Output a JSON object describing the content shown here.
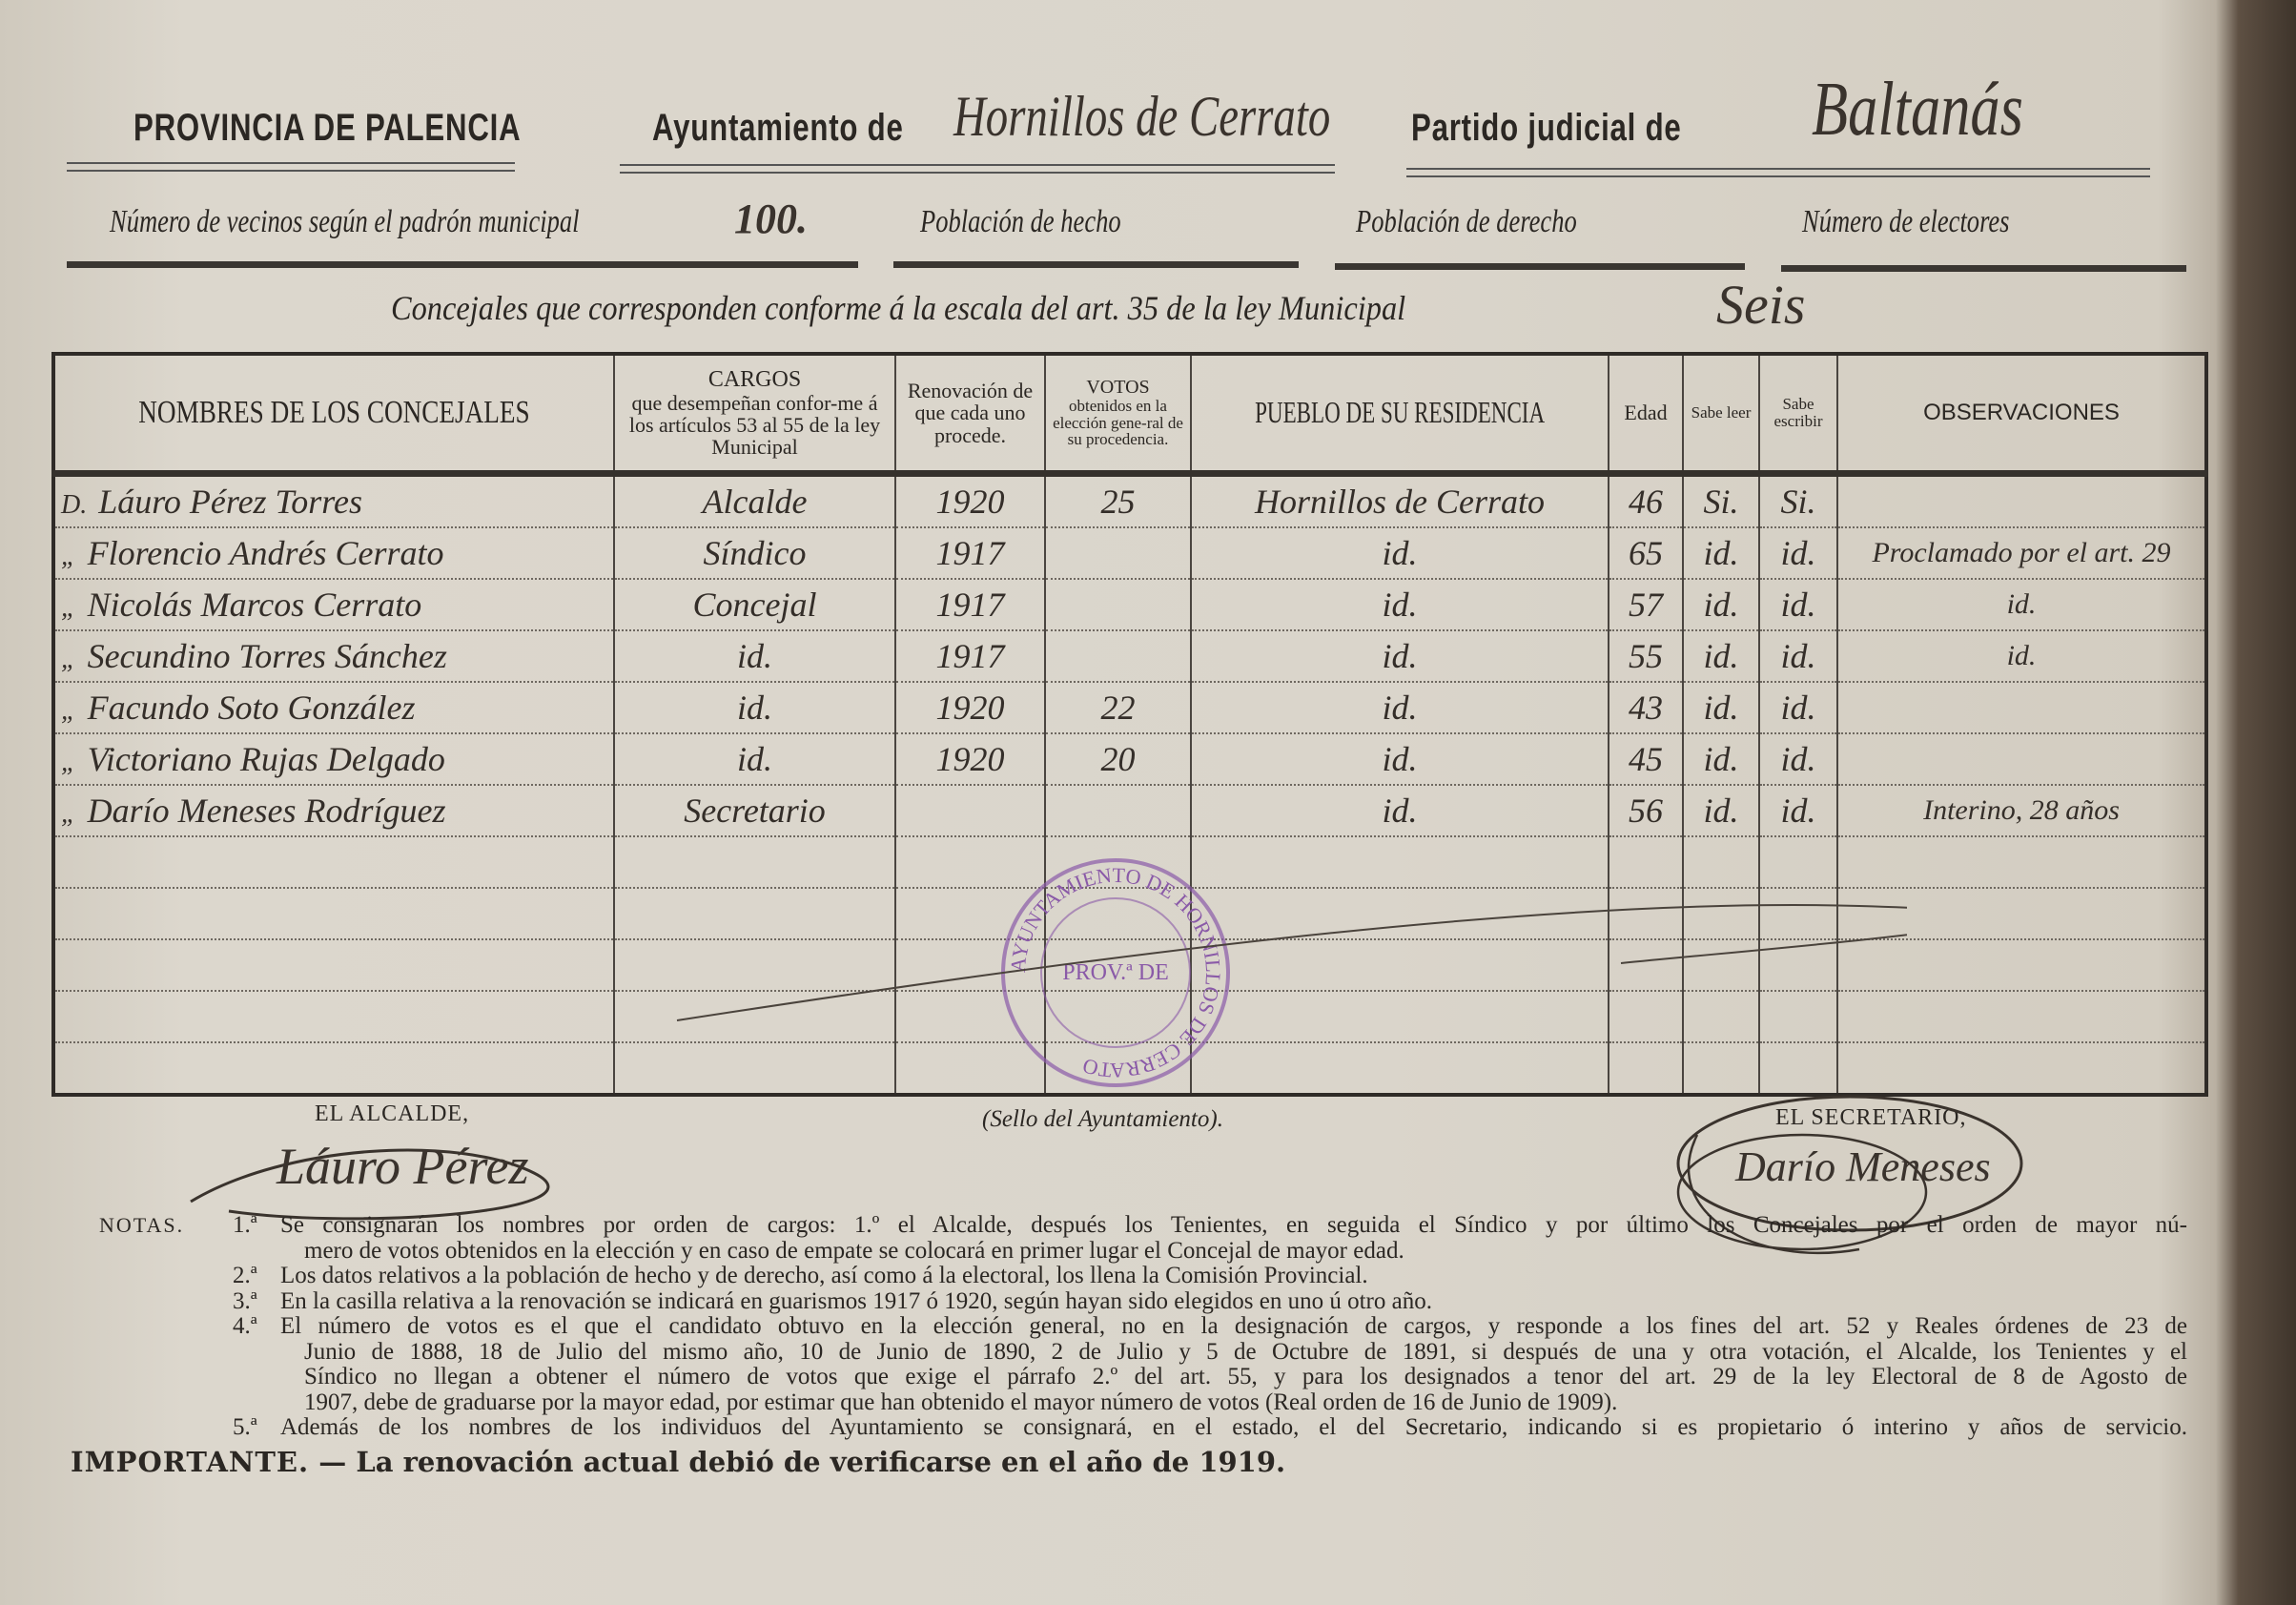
{
  "header": {
    "province": "PROVINCIA DE PALENCIA",
    "ayuntamiento_label": "Ayuntamiento de",
    "ayuntamiento_value": "Hornillos de Cerrato",
    "partido_label": "Partido judicial de",
    "partido_value": "Baltanás"
  },
  "population": {
    "vecinos_label": "Número de vecinos según el padrón municipal",
    "vecinos_value": "100.",
    "hecho_label": "Población de hecho",
    "derecho_label": "Población de derecho",
    "electores_label": "Número de electores"
  },
  "concejales_line": {
    "label": "Concejales que corresponden conforme á la escala del art. 35 de la ley Municipal",
    "value": "Seis"
  },
  "table": {
    "headers": {
      "nombres": "NOMBRES DE LOS CONCEJALES",
      "cargos_title": "CARGOS",
      "cargos_sub": "que desempeñan confor-me á los artículos 53 al 55 de la ley Municipal",
      "renovacion": "Renovación de que cada uno procede.",
      "votos_title": "VOTOS",
      "votos_sub": "obtenidos en la elección gene-ral de su procedencia.",
      "pueblo": "PUEBLO DE SU RESIDENCIA",
      "edad": "Edad",
      "leer": "Sabe leer",
      "escribir": "Sabe escribir",
      "observaciones": "OBSERVACIONES"
    },
    "rows": [
      {
        "prefix": "D.",
        "nombre": "Láuro Pérez Torres",
        "cargo": "Alcalde",
        "renovacion": "1920",
        "votos": "25",
        "pueblo": "Hornillos de Cerrato",
        "edad": "46",
        "leer": "Si.",
        "escribir": "Si.",
        "observaciones": ""
      },
      {
        "prefix": "„",
        "nombre": "Florencio Andrés Cerrato",
        "cargo": "Síndico",
        "renovacion": "1917",
        "votos": "",
        "pueblo": "id.",
        "edad": "65",
        "leer": "id.",
        "escribir": "id.",
        "observaciones": "Proclamado por el art. 29"
      },
      {
        "prefix": "„",
        "nombre": "Nicolás Marcos Cerrato",
        "cargo": "Concejal",
        "renovacion": "1917",
        "votos": "",
        "pueblo": "id.",
        "edad": "57",
        "leer": "id.",
        "escribir": "id.",
        "observaciones": "id."
      },
      {
        "prefix": "„",
        "nombre": "Secundino Torres Sánchez",
        "cargo": "id.",
        "renovacion": "1917",
        "votos": "",
        "pueblo": "id.",
        "edad": "55",
        "leer": "id.",
        "escribir": "id.",
        "observaciones": "id."
      },
      {
        "prefix": "„",
        "nombre": "Facundo Soto González",
        "cargo": "id.",
        "renovacion": "1920",
        "votos": "22",
        "pueblo": "id.",
        "edad": "43",
        "leer": "id.",
        "escribir": "id.",
        "observaciones": ""
      },
      {
        "prefix": "„",
        "nombre": "Victoriano Rujas Delgado",
        "cargo": "id.",
        "renovacion": "1920",
        "votos": "20",
        "pueblo": "id.",
        "edad": "45",
        "leer": "id.",
        "escribir": "id.",
        "observaciones": ""
      },
      {
        "prefix": "„",
        "nombre": "Darío Meneses Rodríguez",
        "cargo": "Secretario",
        "renovacion": "",
        "votos": "",
        "pueblo": "id.",
        "edad": "56",
        "leer": "id.",
        "escribir": "id.",
        "observaciones": "Interino, 28 años"
      }
    ]
  },
  "signatures": {
    "alcalde_label": "EL ALCALDE,",
    "alcalde_signature": "Láuro Pérez",
    "sello_label": "(Sello del Ayuntamiento).",
    "secretario_label": "EL SECRETARIO,",
    "secretario_signature": "Darío Meneses"
  },
  "stamp": {
    "ring_text": "AYUNTAMIENTO DE HORNILLOS DE CERRATO",
    "center_text": "PROV.ª DE",
    "color": "#8a5aa8"
  },
  "notes": {
    "label": "NOTAS.",
    "items": [
      {
        "num": "1.ª",
        "lines": [
          "Se consignarán los nombres por orden de cargos: 1.º el Alcalde, después los Tenientes, en seguida el Síndico y por último los Concejales por el orden de mayor nú-",
          "mero de votos obtenidos en la elección y en caso de empate se colocará en primer lugar el Concejal de mayor edad."
        ]
      },
      {
        "num": "2.ª",
        "lines": [
          "Los datos relativos a la población de hecho y de derecho, así como á la electoral, los llena la Comisión Provincial."
        ]
      },
      {
        "num": "3.ª",
        "lines": [
          "En la casilla relativa a la renovación se indicará en guarismos 1917 ó 1920, según hayan sido elegidos en uno ú otro año."
        ]
      },
      {
        "num": "4.ª",
        "lines": [
          "El número de votos es el que el candidato obtuvo en la elección general, no en la designación de cargos, y responde a los fines del art. 52 y Reales órdenes de 23 de",
          "Junio de 1888, 18 de Julio del mismo año, 10 de Junio de 1890, 2 de Julio y 5 de Octubre de 1891, si después de una y otra votación, el Alcalde, los Tenientes y el",
          "Síndico no llegan a obtener el número de votos que exige el párrafo 2.º del art. 55, y para los designados a tenor del art. 29 de la ley Electoral de 8 de Agosto de",
          "1907, debe de graduarse por la mayor edad, por estimar que han obtenido el mayor número de votos (Real orden de 16 de Junio de 1909)."
        ]
      },
      {
        "num": "5.ª",
        "lines": [
          "Además de los nombres de los individuos del Ayuntamiento se consignará, en el estado, el del Secretario, indicando si es propietario ó interino y años de servicio."
        ]
      }
    ]
  },
  "important": {
    "label": "IMPORTANTE.",
    "text": "— La renovación actual debió de verificarse en el año de 1919."
  }
}
